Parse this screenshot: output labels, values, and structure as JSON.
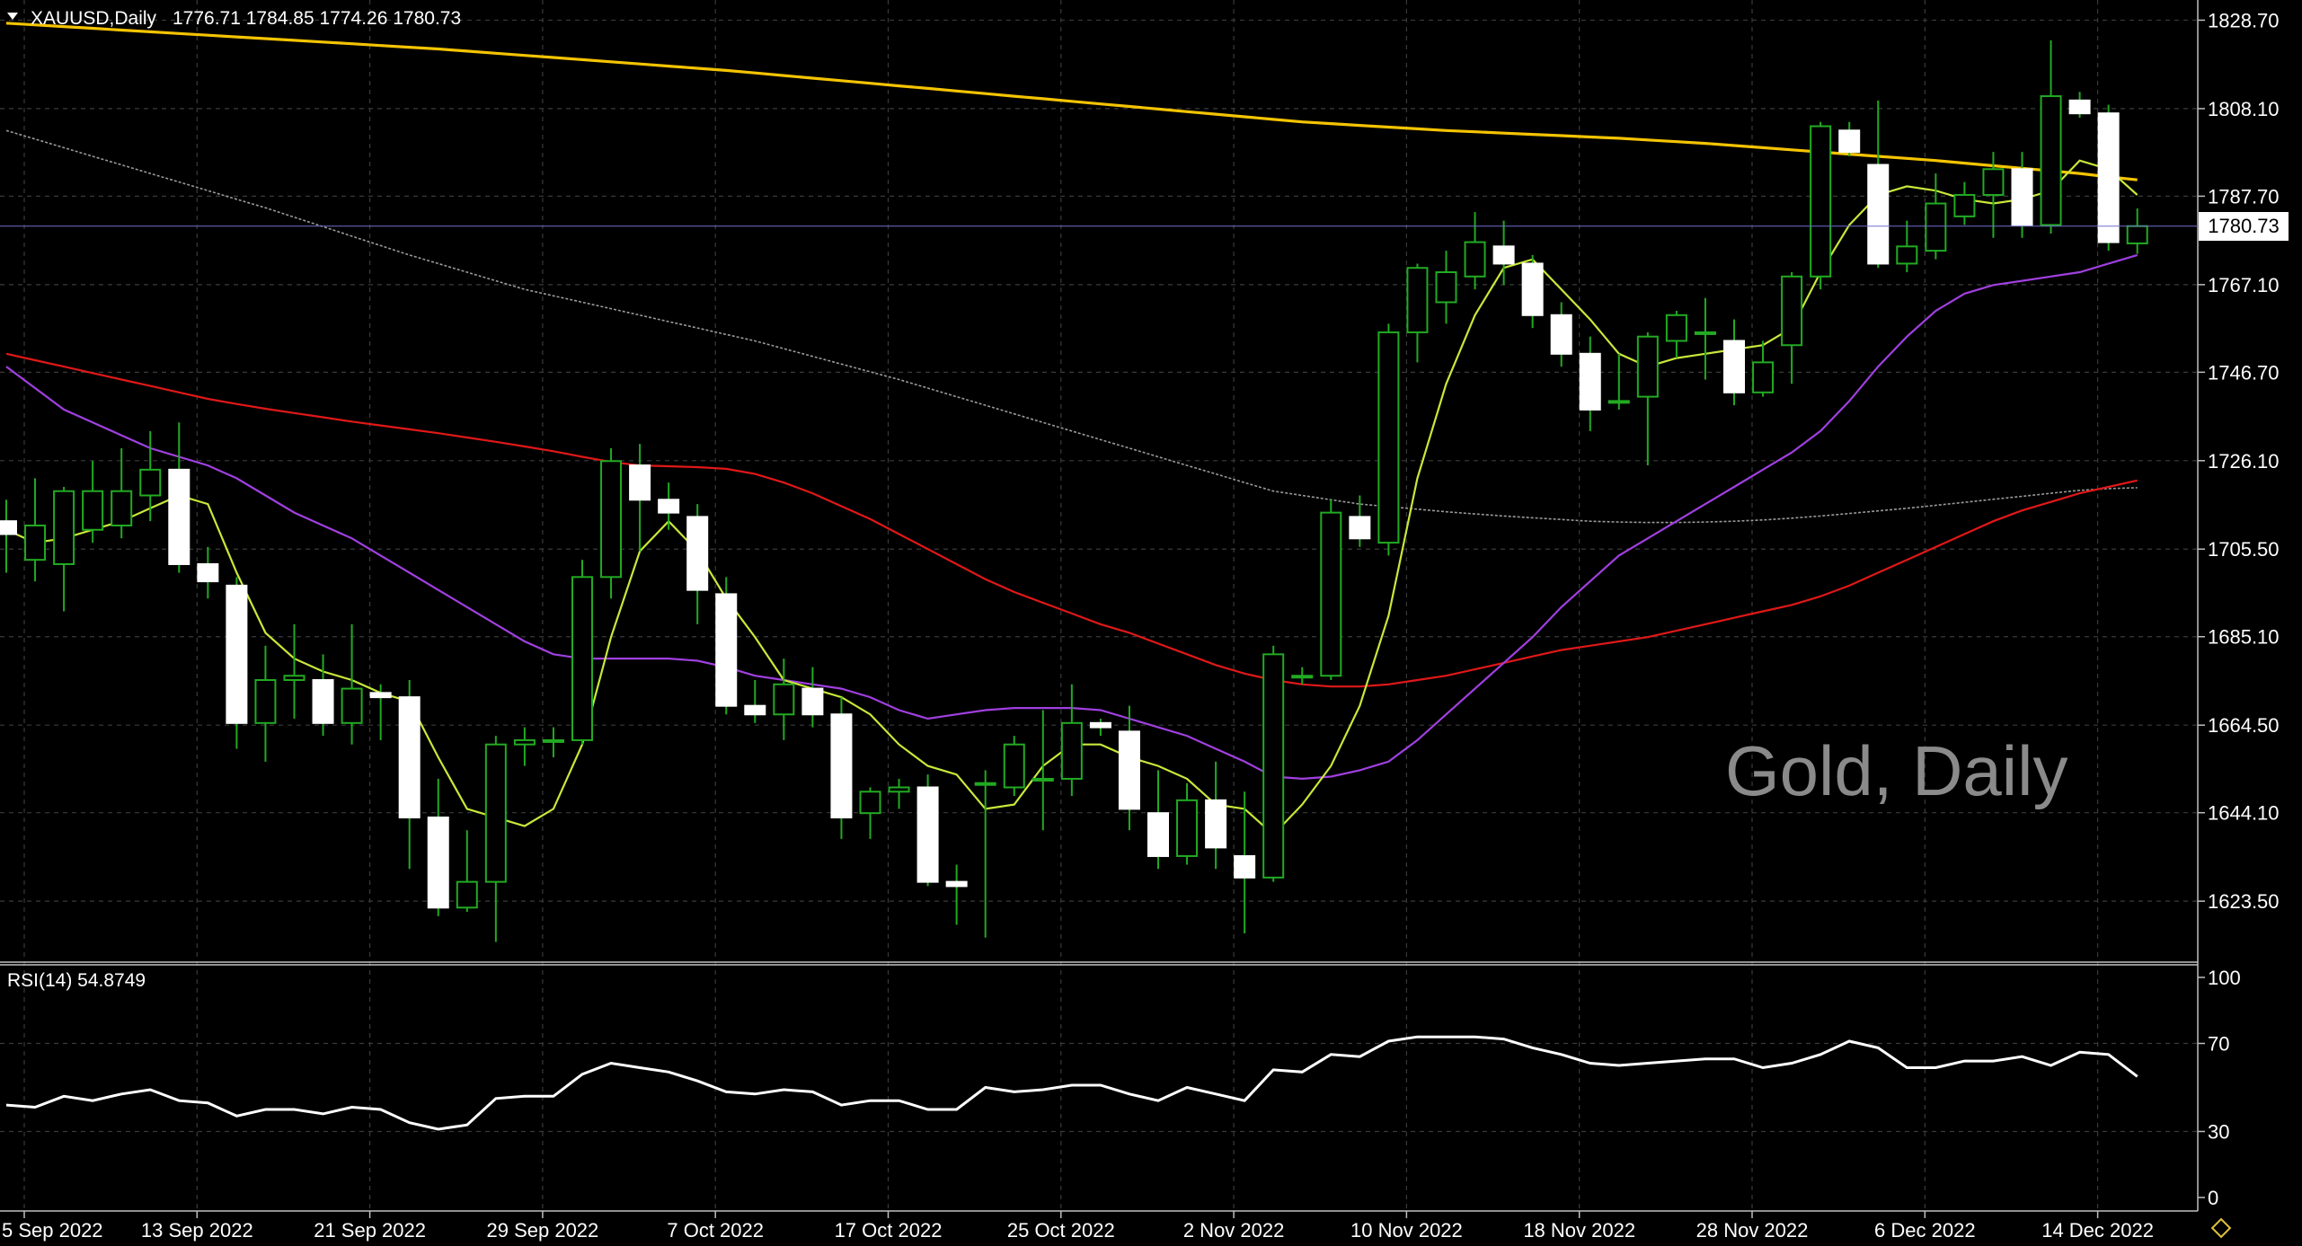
{
  "header": {
    "symbol_label": "XAUUSD,Daily",
    "ohlc_label": "1776.71 1784.85 1774.26 1780.73"
  },
  "watermark": "Gold, Daily",
  "current_price_label": "1780.73",
  "indicator": {
    "label": "RSI(14) 54.8749"
  },
  "colors": {
    "background": "#000000",
    "grid": "#3a3a3a",
    "candle_bull": "#000000",
    "candle_bear": "#ffffff",
    "candle_wick": "#22aa22",
    "ma_yellow": "#f5c400",
    "ma_gray": "#9a9a9a",
    "ma_red": "#e01818",
    "ma_purple": "#a040e0",
    "ma_lightgreen": "#c8e83a",
    "rsi_line": "#ffffff"
  },
  "chart_data": {
    "type": "candlestick",
    "price_axis": {
      "ticks": [
        "1828.70",
        "1808.10",
        "1787.70",
        "1767.10",
        "1746.70",
        "1726.10",
        "1705.50",
        "1685.10",
        "1664.50",
        "1644.10",
        "1623.50"
      ],
      "ylim": [
        1609.3,
        1833.4
      ]
    },
    "time_axis": {
      "labels": [
        "5 Sep 2022",
        "13 Sep 2022",
        "21 Sep 2022",
        "29 Sep 2022",
        "7 Oct 2022",
        "17 Oct 2022",
        "25 Oct 2022",
        "2 Nov 2022",
        "10 Nov 2022",
        "18 Nov 2022",
        "28 Nov 2022",
        "6 Dec 2022",
        "14 Dec 2022"
      ]
    },
    "candles": [
      {
        "o": 1712.0,
        "h": 1717.0,
        "l": 1700.0,
        "c": 1709.0
      },
      {
        "o": 1703.0,
        "h": 1722.0,
        "l": 1698.0,
        "c": 1711.0
      },
      {
        "o": 1702.0,
        "h": 1720.0,
        "l": 1691.0,
        "c": 1719.0
      },
      {
        "o": 1710.0,
        "h": 1726.0,
        "l": 1707.0,
        "c": 1719.0
      },
      {
        "o": 1711.0,
        "h": 1729.0,
        "l": 1708.0,
        "c": 1719.0
      },
      {
        "o": 1718.0,
        "h": 1733.0,
        "l": 1712.0,
        "c": 1724.0
      },
      {
        "o": 1724.0,
        "h": 1735.0,
        "l": 1700.0,
        "c": 1702.0
      },
      {
        "o": 1702.0,
        "h": 1706.0,
        "l": 1694.0,
        "c": 1698.0
      },
      {
        "o": 1697.0,
        "h": 1699.0,
        "l": 1659.0,
        "c": 1665.0
      },
      {
        "o": 1665.0,
        "h": 1683.0,
        "l": 1656.0,
        "c": 1675.0
      },
      {
        "o": 1675.0,
        "h": 1688.0,
        "l": 1666.0,
        "c": 1676.0
      },
      {
        "o": 1675.0,
        "h": 1681.0,
        "l": 1662.0,
        "c": 1665.0
      },
      {
        "o": 1665.0,
        "h": 1688.0,
        "l": 1660.0,
        "c": 1673.0
      },
      {
        "o": 1672.0,
        "h": 1674.0,
        "l": 1661.0,
        "c": 1671.0
      },
      {
        "o": 1671.0,
        "h": 1675.0,
        "l": 1631.0,
        "c": 1643.0
      },
      {
        "o": 1643.0,
        "h": 1652.0,
        "l": 1620.0,
        "c": 1622.0
      },
      {
        "o": 1622.0,
        "h": 1640.0,
        "l": 1621.0,
        "c": 1628.0
      },
      {
        "o": 1628.0,
        "h": 1662.0,
        "l": 1614.0,
        "c": 1660.0
      },
      {
        "o": 1660.0,
        "h": 1664.0,
        "l": 1655.0,
        "c": 1661.0
      },
      {
        "o": 1661.0,
        "h": 1664.0,
        "l": 1657.0,
        "c": 1661.0
      },
      {
        "o": 1661.0,
        "h": 1703.0,
        "l": 1660.0,
        "c": 1699.0
      },
      {
        "o": 1699.0,
        "h": 1729.0,
        "l": 1694.0,
        "c": 1726.0
      },
      {
        "o": 1725.0,
        "h": 1730.0,
        "l": 1705.0,
        "c": 1717.0
      },
      {
        "o": 1717.0,
        "h": 1721.0,
        "l": 1710.0,
        "c": 1714.0
      },
      {
        "o": 1713.0,
        "h": 1716.0,
        "l": 1688.0,
        "c": 1696.0
      },
      {
        "o": 1695.0,
        "h": 1699.0,
        "l": 1667.0,
        "c": 1669.0
      },
      {
        "o": 1669.0,
        "h": 1675.0,
        "l": 1665.0,
        "c": 1667.0
      },
      {
        "o": 1667.0,
        "h": 1680.0,
        "l": 1661.0,
        "c": 1674.0
      },
      {
        "o": 1673.0,
        "h": 1678.0,
        "l": 1664.0,
        "c": 1667.0
      },
      {
        "o": 1667.0,
        "h": 1671.0,
        "l": 1638.0,
        "c": 1643.0
      },
      {
        "o": 1644.0,
        "h": 1650.0,
        "l": 1638.0,
        "c": 1649.0
      },
      {
        "o": 1649.0,
        "h": 1652.0,
        "l": 1645.0,
        "c": 1650.0
      },
      {
        "o": 1650.0,
        "h": 1653.0,
        "l": 1627.0,
        "c": 1628.0
      },
      {
        "o": 1628.0,
        "h": 1632.0,
        "l": 1618.0,
        "c": 1627.0
      },
      {
        "o": 1651.0,
        "h": 1654.0,
        "l": 1615.0,
        "c": 1651.0
      },
      {
        "o": 1650.0,
        "h": 1662.0,
        "l": 1648.0,
        "c": 1660.0
      },
      {
        "o": 1652.0,
        "h": 1668.0,
        "l": 1640.0,
        "c": 1652.0
      },
      {
        "o": 1652.0,
        "h": 1674.0,
        "l": 1648.0,
        "c": 1665.0
      },
      {
        "o": 1665.0,
        "h": 1666.0,
        "l": 1662.0,
        "c": 1664.0
      },
      {
        "o": 1663.0,
        "h": 1669.0,
        "l": 1640.0,
        "c": 1645.0
      },
      {
        "o": 1644.0,
        "h": 1654.0,
        "l": 1631.0,
        "c": 1634.0
      },
      {
        "o": 1634.0,
        "h": 1651.0,
        "l": 1632.0,
        "c": 1647.0
      },
      {
        "o": 1647.0,
        "h": 1656.0,
        "l": 1631.0,
        "c": 1636.0
      },
      {
        "o": 1634.0,
        "h": 1649.0,
        "l": 1616.0,
        "c": 1629.0
      },
      {
        "o": 1629.0,
        "h": 1683.0,
        "l": 1628.0,
        "c": 1681.0
      },
      {
        "o": 1676.0,
        "h": 1678.0,
        "l": 1674.0,
        "c": 1676.0
      },
      {
        "o": 1676.0,
        "h": 1717.0,
        "l": 1675.0,
        "c": 1714.0
      },
      {
        "o": 1713.0,
        "h": 1718.0,
        "l": 1706.0,
        "c": 1708.0
      },
      {
        "o": 1707.0,
        "h": 1758.0,
        "l": 1704.0,
        "c": 1756.0
      },
      {
        "o": 1756.0,
        "h": 1772.0,
        "l": 1749.0,
        "c": 1771.0
      },
      {
        "o": 1763.0,
        "h": 1775.0,
        "l": 1758.0,
        "c": 1770.0
      },
      {
        "o": 1769.0,
        "h": 1784.0,
        "l": 1766.0,
        "c": 1777.0
      },
      {
        "o": 1776.0,
        "h": 1782.0,
        "l": 1767.0,
        "c": 1772.0
      },
      {
        "o": 1772.0,
        "h": 1774.0,
        "l": 1757.0,
        "c": 1760.0
      },
      {
        "o": 1760.0,
        "h": 1763.0,
        "l": 1748.0,
        "c": 1751.0
      },
      {
        "o": 1751.0,
        "h": 1755.0,
        "l": 1733.0,
        "c": 1738.0
      },
      {
        "o": 1740.0,
        "h": 1751.0,
        "l": 1738.0,
        "c": 1740.0
      },
      {
        "o": 1741.0,
        "h": 1756.0,
        "l": 1725.0,
        "c": 1755.0
      },
      {
        "o": 1754.0,
        "h": 1761.0,
        "l": 1750.0,
        "c": 1760.0
      },
      {
        "o": 1756.0,
        "h": 1764.0,
        "l": 1745.0,
        "c": 1756.0
      },
      {
        "o": 1754.0,
        "h": 1759.0,
        "l": 1739.0,
        "c": 1742.0
      },
      {
        "o": 1742.0,
        "h": 1754.0,
        "l": 1741.0,
        "c": 1749.0
      },
      {
        "o": 1753.0,
        "h": 1770.0,
        "l": 1744.0,
        "c": 1769.0
      },
      {
        "o": 1769.0,
        "h": 1805.0,
        "l": 1766.0,
        "c": 1804.0
      },
      {
        "o": 1803.0,
        "h": 1805.0,
        "l": 1797.0,
        "c": 1798.0
      },
      {
        "o": 1795.0,
        "h": 1810.0,
        "l": 1771.0,
        "c": 1772.0
      },
      {
        "o": 1772.0,
        "h": 1782.0,
        "l": 1770.0,
        "c": 1776.0
      },
      {
        "o": 1775.0,
        "h": 1793.0,
        "l": 1773.0,
        "c": 1786.0
      },
      {
        "o": 1783.0,
        "h": 1791.0,
        "l": 1781.0,
        "c": 1788.0
      },
      {
        "o": 1788.0,
        "h": 1798.0,
        "l": 1778.0,
        "c": 1794.0
      },
      {
        "o": 1794.0,
        "h": 1798.0,
        "l": 1778.0,
        "c": 1781.0
      },
      {
        "o": 1781.0,
        "h": 1824.0,
        "l": 1779.0,
        "c": 1811.0
      },
      {
        "o": 1810.0,
        "h": 1812.0,
        "l": 1806.0,
        "c": 1807.0
      },
      {
        "o": 1807.0,
        "h": 1809.0,
        "l": 1775.0,
        "c": 1777.0
      },
      {
        "o": 1776.71,
        "h": 1784.85,
        "l": 1774.26,
        "c": 1780.73
      }
    ],
    "moving_averages": [
      {
        "color": "#f5c400",
        "values": [
          1828,
          1827.6,
          1827.2,
          1826.8,
          1826.4,
          1826,
          1825.6,
          1825.2,
          1824.8,
          1824.4,
          1824,
          1823.6,
          1823.2,
          1822.8,
          1822.4,
          1822,
          1821.5,
          1821,
          1820.5,
          1820,
          1819.5,
          1819,
          1818.5,
          1818,
          1817.5,
          1817,
          1816.4,
          1815.8,
          1815.2,
          1814.6,
          1814,
          1813.4,
          1812.8,
          1812.2,
          1811.6,
          1811,
          1810.4,
          1809.8,
          1809.2,
          1808.6,
          1808,
          1807.4,
          1806.8,
          1806.2,
          1805.6,
          1805,
          1804.6,
          1804.2,
          1803.8,
          1803.4,
          1803,
          1802.7,
          1802.4,
          1802.1,
          1801.8,
          1801.5,
          1801.2,
          1800.8,
          1800.4,
          1800,
          1799.5,
          1799,
          1798.5,
          1798,
          1797.5,
          1797,
          1796.5,
          1796,
          1795.4,
          1794.8,
          1794.2,
          1793.6,
          1793,
          1792.2,
          1791.5
        ]
      },
      {
        "color": "#9a9a9a",
        "values": [
          1803,
          1801,
          1799,
          1797,
          1795,
          1793,
          1791,
          1789,
          1787,
          1785,
          1782.8,
          1780.6,
          1778.4,
          1776.2,
          1774,
          1772,
          1770,
          1768,
          1766,
          1764.5,
          1763,
          1761.5,
          1760,
          1758.5,
          1757,
          1755.5,
          1754,
          1752.2,
          1750.4,
          1748.6,
          1746.8,
          1745,
          1743,
          1741,
          1739,
          1737,
          1735,
          1733,
          1731,
          1729,
          1727,
          1725,
          1723,
          1721,
          1719,
          1718,
          1717,
          1716,
          1715.4,
          1714.8,
          1714.2,
          1713.7,
          1713.2,
          1712.8,
          1712.4,
          1712,
          1711.8,
          1711.7,
          1711.7,
          1711.8,
          1712,
          1712.3,
          1712.7,
          1713.2,
          1713.8,
          1714.4,
          1715,
          1715.7,
          1716.4,
          1717.1,
          1717.8,
          1718.5,
          1719.2,
          1719.6,
          1719.8
        ]
      },
      {
        "color": "#e01818",
        "values": [
          1751,
          1749.5,
          1748,
          1746.5,
          1745,
          1743.5,
          1742,
          1740.5,
          1739.3,
          1738.2,
          1737.2,
          1736.2,
          1735.2,
          1734.3,
          1733.4,
          1732.5,
          1731.5,
          1730.5,
          1729.4,
          1728.3,
          1727,
          1725.8,
          1725,
          1724.8,
          1724.6,
          1724.2,
          1723,
          1721,
          1718.5,
          1715.5,
          1712.5,
          1709,
          1705.5,
          1702,
          1698.5,
          1695.5,
          1693,
          1690.5,
          1688,
          1686,
          1683.5,
          1681,
          1678.5,
          1676.5,
          1675,
          1674,
          1673.5,
          1673.5,
          1674,
          1675,
          1676,
          1677.5,
          1679,
          1680.5,
          1682,
          1683,
          1684,
          1685,
          1686.5,
          1688,
          1689.5,
          1691,
          1692.5,
          1694.5,
          1697,
          1700,
          1703,
          1706,
          1709,
          1712,
          1714.5,
          1716.5,
          1718.5,
          1720,
          1721.5
        ]
      },
      {
        "color": "#a040e0",
        "values": [
          1748,
          1743,
          1738,
          1735,
          1732,
          1729,
          1727,
          1725,
          1722,
          1718,
          1714,
          1711,
          1708,
          1704,
          1700,
          1696,
          1692,
          1688,
          1684,
          1681,
          1680,
          1680,
          1680,
          1680,
          1679.5,
          1678,
          1676,
          1675,
          1674,
          1673,
          1671,
          1668,
          1666,
          1667,
          1668,
          1668.5,
          1668.5,
          1668.5,
          1668,
          1666,
          1664,
          1662,
          1659,
          1656,
          1652.5,
          1652,
          1652.5,
          1654,
          1656,
          1661,
          1667,
          1673,
          1679,
          1685,
          1692,
          1698,
          1704,
          1708,
          1712,
          1716,
          1720,
          1724,
          1728,
          1733,
          1740,
          1748,
          1755,
          1761,
          1765,
          1767,
          1768,
          1769,
          1770,
          1772,
          1774
        ]
      },
      {
        "color": "#c8e83a",
        "values": [
          1710,
          1707,
          1708,
          1710,
          1712,
          1715,
          1718,
          1716,
          1700,
          1686,
          1680,
          1677,
          1675,
          1672,
          1670,
          1657,
          1645,
          1643,
          1641,
          1645,
          1660,
          1685,
          1705,
          1712,
          1705,
          1694,
          1685,
          1675,
          1673,
          1671,
          1667,
          1660,
          1655,
          1653,
          1645,
          1646,
          1655,
          1660,
          1660,
          1657,
          1655,
          1652,
          1646,
          1645,
          1639,
          1646,
          1655,
          1669,
          1690,
          1722,
          1744,
          1760,
          1771,
          1773,
          1766,
          1759,
          1751,
          1748,
          1750,
          1751,
          1752,
          1753,
          1757,
          1770,
          1781,
          1788,
          1790,
          1789,
          1787,
          1786,
          1787,
          1789,
          1796,
          1794,
          1788
        ]
      }
    ],
    "rsi": {
      "label": "RSI(14) 54.8749",
      "ticks": [
        "100",
        "70",
        "30",
        "0"
      ],
      "ylim": [
        0,
        100
      ],
      "values": [
        42,
        41,
        46,
        44,
        47,
        49,
        44,
        43,
        37,
        40,
        40,
        38,
        41,
        40,
        34,
        31,
        33,
        45,
        46,
        46,
        56,
        61,
        59,
        57,
        53,
        48,
        47,
        49,
        48,
        42,
        44,
        44,
        40,
        40,
        50,
        48,
        49,
        51,
        51,
        47,
        44,
        50,
        47,
        44,
        58,
        57,
        65,
        64,
        71,
        73,
        73,
        73,
        72,
        68,
        65,
        61,
        60,
        61,
        62,
        63,
        63,
        59,
        61,
        65,
        71,
        68,
        59,
        59,
        62,
        62,
        64,
        60,
        66,
        65,
        55
      ]
    }
  }
}
